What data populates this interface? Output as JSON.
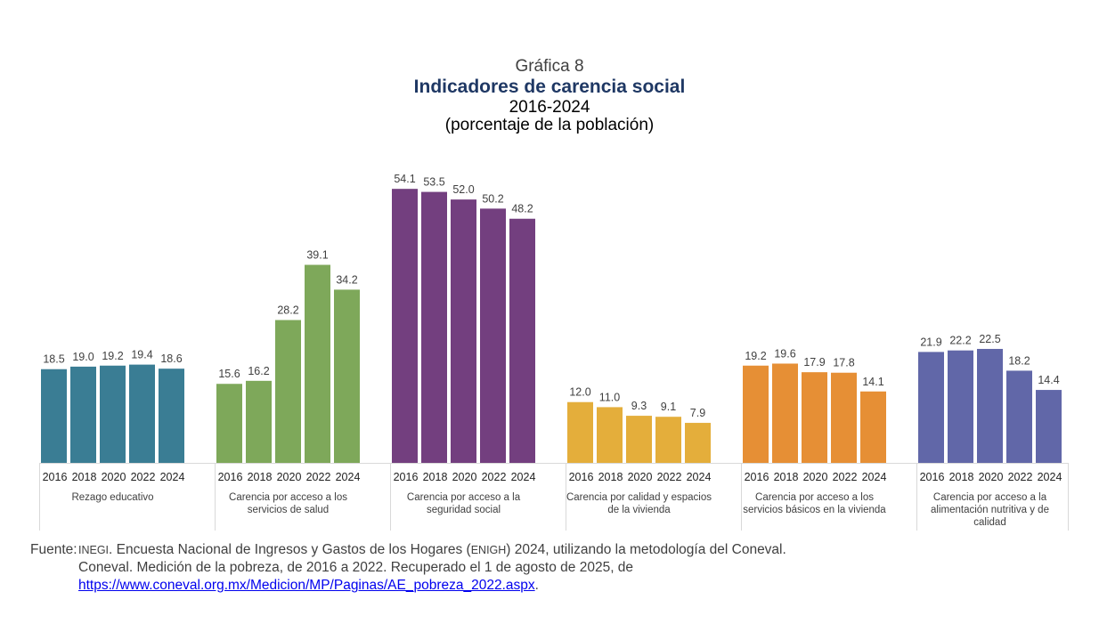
{
  "header": {
    "subtitle": "Gráfica 8",
    "title": "Indicadores de carencia social",
    "period": "2016-2024",
    "units": "(porcentaje de la población)"
  },
  "chart_data": {
    "type": "bar",
    "title": "Indicadores de carencia social",
    "subtitle": "2016-2024 (porcentaje de la población)",
    "xlabel": "",
    "ylabel": "porcentaje de la población",
    "ylim": [
      0,
      56
    ],
    "grid": false,
    "years": [
      "2016",
      "2018",
      "2020",
      "2022",
      "2024"
    ],
    "groups": [
      {
        "name": "Rezago educativo",
        "label_lines": [
          "Rezago educativo"
        ],
        "color": "#3a7d94",
        "values": [
          18.5,
          19.0,
          19.2,
          19.4,
          18.6
        ]
      },
      {
        "name": "Carencia por acceso a los servicios de salud",
        "label_lines": [
          "Carencia por acceso a los",
          "servicios de salud"
        ],
        "color": "#7ea85a",
        "values": [
          15.6,
          16.2,
          28.2,
          39.1,
          34.2
        ]
      },
      {
        "name": "Carencia por acceso a la seguridad social",
        "label_lines": [
          "Carencia por acceso a la",
          "seguridad social"
        ],
        "color": "#733f7f",
        "values": [
          54.1,
          53.5,
          52.0,
          50.2,
          48.2
        ]
      },
      {
        "name": "Carencia por calidad y espacios de la vivienda",
        "label_lines": [
          "Carencia por calidad y espacios",
          "de la vivienda"
        ],
        "color": "#e4ae3b",
        "values": [
          12.0,
          11.0,
          9.3,
          9.1,
          7.9
        ]
      },
      {
        "name": "Carencia por acceso a los servicios básicos en la vivienda",
        "label_lines": [
          "Carencia por acceso a los",
          "servicios básicos en la vivienda"
        ],
        "color": "#e68f35",
        "values": [
          19.2,
          19.6,
          17.9,
          17.8,
          14.1
        ]
      },
      {
        "name": "Carencia por acceso a la alimentación nutritiva y de calidad",
        "label_lines": [
          "Carencia por acceso a la",
          "alimentación nutritiva y de",
          "calidad"
        ],
        "color": "#6167a8",
        "values": [
          21.9,
          22.2,
          22.5,
          18.2,
          14.4
        ]
      }
    ]
  },
  "source": {
    "lead": "Fuente:",
    "inegi": "INEGI",
    "line1_a": ". Encuesta Nacional de Ingresos y Gastos de los Hogares (",
    "enigh": "ENIGH",
    "line1_b": ") 2024, utilizando la metodología del Coneval.",
    "line2": "Coneval. Medición de la pobreza, de 2016 a 2022. Recuperado el 1 de agosto de 2025, de",
    "link": "https://www.coneval.org.mx/Medicion/MP/Paginas/AE_pobreza_2022.aspx",
    "link_end": "."
  }
}
